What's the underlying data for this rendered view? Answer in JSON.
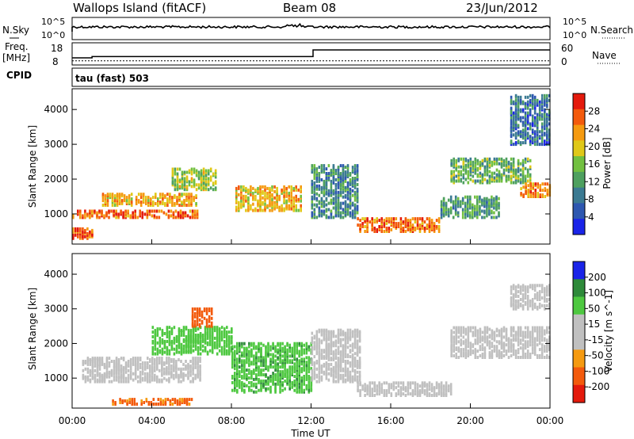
{
  "header": {
    "station": "Wallops Island (fitACF)",
    "beam": "Beam 08",
    "date": "23/Jun/2012"
  },
  "strips": {
    "nsky_label": "N.Sky",
    "nsearch_label": "N.Search",
    "noise_ticks": [
      "10^5",
      "10^0"
    ],
    "freq_label": "Freq.",
    "freq_unit": "[MHz]",
    "freq_ticks": [
      "18",
      "8"
    ],
    "nave_label": "Nave",
    "nave_ticks": [
      "60",
      "0"
    ],
    "cpid_label": "CPID",
    "cpid_value": "tau (fast) 503",
    "freq_steps": [
      {
        "t": 0.0,
        "mhz": 10.5
      },
      {
        "t": 1.0,
        "mhz": 11.3
      },
      {
        "t": 12.1,
        "mhz": 15.5
      },
      {
        "t": 24.0,
        "mhz": 15.5
      }
    ],
    "nave_level": 8
  },
  "colors": {
    "power": [
      "#1a24e8",
      "#2d57b0",
      "#3b7a92",
      "#4ea05f",
      "#72c040",
      "#e0c818",
      "#f59a10",
      "#f35a0c",
      "#e41a0c"
    ],
    "velocity": [
      "#e41a0c",
      "#f35a0c",
      "#f59a10",
      "#c0c0c0",
      "#c0c0c0",
      "#4ec840",
      "#2e8a3a",
      "#1a24e8"
    ]
  },
  "chart_data": [
    {
      "type": "heatmap",
      "quantity": "Power",
      "ylabel": "Slant Range [km]",
      "colorbar_label": "Power [dB]",
      "colorbar_ticks": [
        "4",
        "8",
        "12",
        "16",
        "20",
        "24",
        "28"
      ],
      "y_ticks": [
        "1000",
        "2000",
        "3000",
        "4000"
      ],
      "ylim": [
        180,
        4550
      ],
      "x_ticks": [
        "00:00",
        "04:00",
        "08:00",
        "12:00",
        "16:00",
        "20:00",
        "00:00"
      ],
      "xlim_hours": [
        0,
        24
      ],
      "echo_bands": [
        {
          "t0": 0.0,
          "t1": 6.3,
          "r0": 900,
          "r1": 1100,
          "db": 26
        },
        {
          "t0": 1.5,
          "t1": 6.3,
          "r0": 1250,
          "r1": 1600,
          "db": 22
        },
        {
          "t0": 5.0,
          "t1": 7.2,
          "r0": 1700,
          "r1": 2300,
          "db": 17
        },
        {
          "t0": 8.2,
          "t1": 11.5,
          "r0": 1100,
          "r1": 1800,
          "db": 21
        },
        {
          "t0": 12.0,
          "t1": 14.3,
          "r0": 900,
          "r1": 2400,
          "db": 10
        },
        {
          "t0": 14.3,
          "t1": 18.5,
          "r0": 500,
          "r1": 900,
          "db": 25
        },
        {
          "t0": 18.5,
          "t1": 21.5,
          "r0": 900,
          "r1": 1500,
          "db": 12
        },
        {
          "t0": 19.0,
          "t1": 23.0,
          "r0": 1900,
          "r1": 2600,
          "db": 14
        },
        {
          "t0": 22.5,
          "t1": 24.0,
          "r0": 1500,
          "r1": 1900,
          "db": 24
        },
        {
          "t0": 0.0,
          "t1": 1.0,
          "r0": 300,
          "r1": 600,
          "db": 27
        },
        {
          "t0": 22.0,
          "t1": 24.0,
          "r0": 3000,
          "r1": 4400,
          "db": 8
        }
      ]
    },
    {
      "type": "heatmap",
      "quantity": "Velocity",
      "ylabel": "Slant Range [km]",
      "colorbar_label": "Velocity [m s^-1]",
      "colorbar_ticks": [
        "-200",
        "-100",
        "-50",
        "-15",
        "15",
        "50",
        "100",
        "200"
      ],
      "y_ticks": [
        "1000",
        "2000",
        "3000",
        "4000"
      ],
      "ylim": [
        180,
        4550
      ],
      "x_ticks": [
        "00:00",
        "04:00",
        "08:00",
        "12:00",
        "16:00",
        "20:00",
        "00:00"
      ],
      "x_label": "Time UT",
      "xlim_hours": [
        0,
        24
      ],
      "echo_bands": [
        {
          "t0": 0.5,
          "t1": 6.5,
          "r0": 900,
          "r1": 1600,
          "vel": 0
        },
        {
          "t0": 4.0,
          "t1": 8.0,
          "r0": 1700,
          "r1": 2500,
          "vel": 30
        },
        {
          "t0": 8.0,
          "t1": 12.0,
          "r0": 600,
          "r1": 2000,
          "vel": 40
        },
        {
          "t0": 12.0,
          "t1": 14.5,
          "r0": 900,
          "r1": 2400,
          "vel": 0
        },
        {
          "t0": 14.3,
          "t1": 19.0,
          "r0": 500,
          "r1": 900,
          "vel": 0
        },
        {
          "t0": 19.0,
          "t1": 24.0,
          "r0": 1600,
          "r1": 2500,
          "vel": 0
        },
        {
          "t0": 6.0,
          "t1": 7.0,
          "r0": 2500,
          "r1": 3000,
          "vel": -80
        },
        {
          "t0": 2.0,
          "t1": 6.0,
          "r0": 250,
          "r1": 400,
          "vel": -60
        },
        {
          "t0": 22.0,
          "t1": 24.0,
          "r0": 3000,
          "r1": 3700,
          "vel": 0
        }
      ]
    }
  ]
}
